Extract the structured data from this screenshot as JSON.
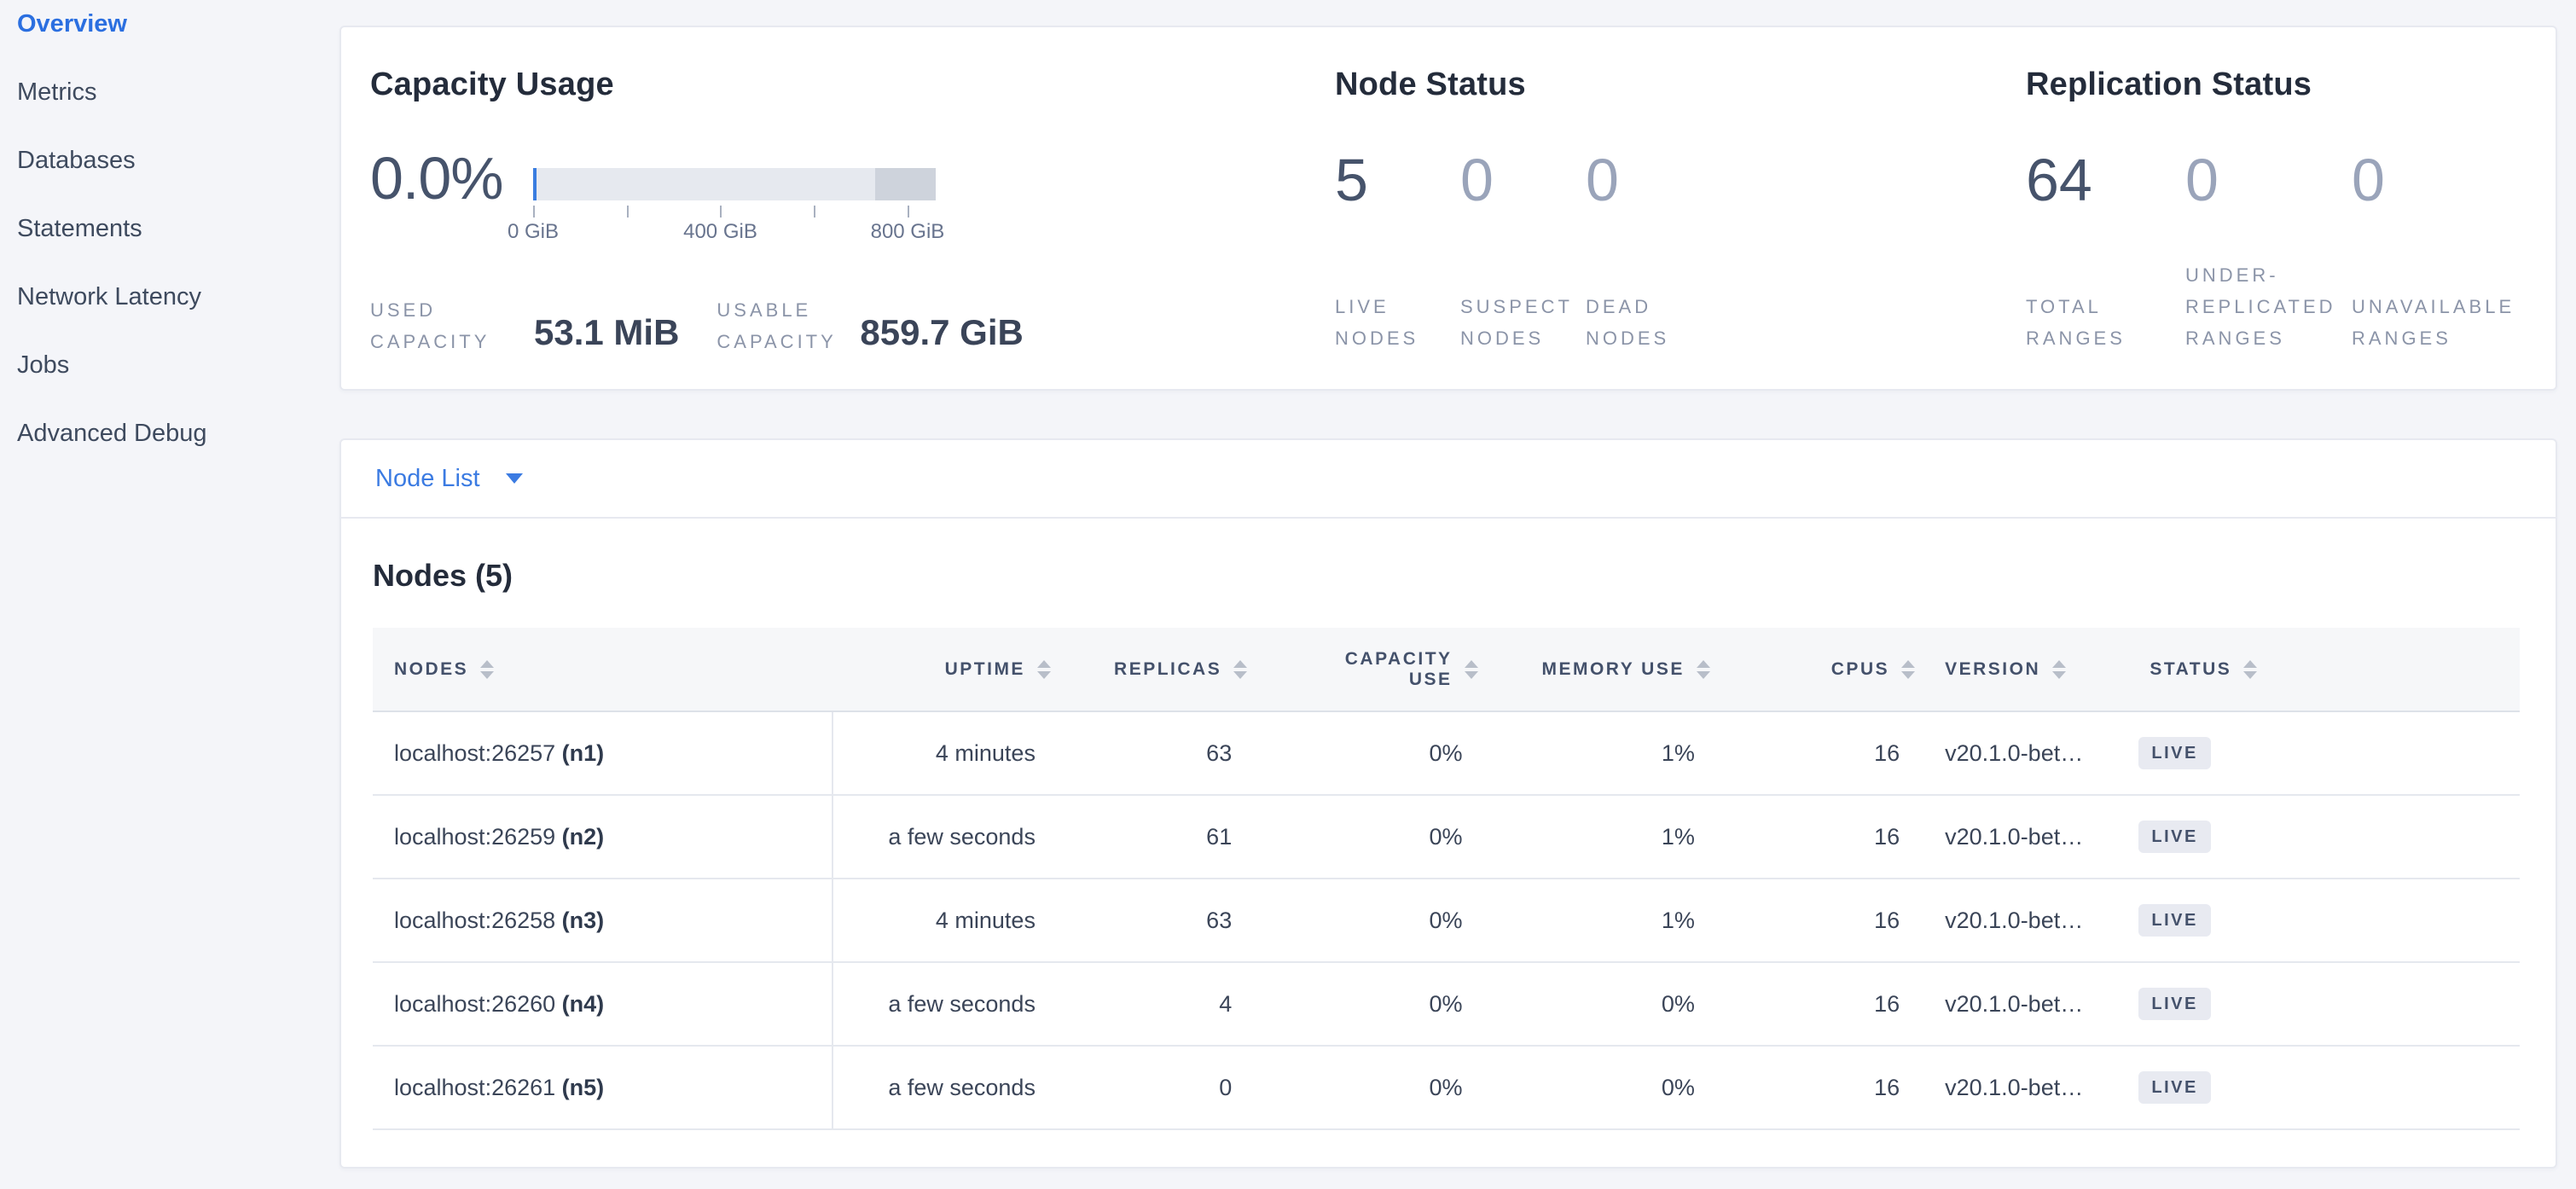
{
  "sidebar": {
    "items": [
      {
        "label": "Overview",
        "active": true
      },
      {
        "label": "Metrics",
        "active": false
      },
      {
        "label": "Databases",
        "active": false
      },
      {
        "label": "Statements",
        "active": false
      },
      {
        "label": "Network Latency",
        "active": false
      },
      {
        "label": "Jobs",
        "active": false
      },
      {
        "label": "Advanced Debug",
        "active": false
      }
    ]
  },
  "capacity": {
    "title": "Capacity Usage",
    "percent_used": "0.0%",
    "gauge": {
      "axis_ticks": [
        {
          "pos_pct": 0,
          "label": "0 GiB"
        },
        {
          "pos_pct": 23.3,
          "label": ""
        },
        {
          "pos_pct": 46.5,
          "label": "400 GiB"
        },
        {
          "pos_pct": 69.8,
          "label": ""
        },
        {
          "pos_pct": 93,
          "label": "800 GiB"
        }
      ],
      "dark_segment_start_pct": 85,
      "used_marker_pct": 0.8
    },
    "stats": [
      {
        "label": "USED CAPACITY",
        "value": "53.1 MiB"
      },
      {
        "label": "USABLE CAPACITY",
        "value": "859.7 GiB"
      }
    ]
  },
  "node_status": {
    "title": "Node Status",
    "stats": [
      {
        "value": "5",
        "label": "LIVE NODES",
        "emphasis": "strong"
      },
      {
        "value": "0",
        "label": "SUSPECT NODES",
        "emphasis": "muted"
      },
      {
        "value": "0",
        "label": "DEAD NODES",
        "emphasis": "muted"
      }
    ]
  },
  "replication_status": {
    "title": "Replication Status",
    "stats": [
      {
        "value": "64",
        "label": "TOTAL RANGES",
        "emphasis": "strong"
      },
      {
        "value": "0",
        "label": "UNDER-REPLICATED RANGES",
        "emphasis": "muted"
      },
      {
        "value": "0",
        "label": "UNAVAILABLE RANGES",
        "emphasis": "muted"
      }
    ]
  },
  "node_list": {
    "dropdown_label": "Node List"
  },
  "nodes_table": {
    "title": "Nodes (5)",
    "columns": [
      {
        "label": "NODES",
        "align": "left"
      },
      {
        "label": "UPTIME",
        "align": "right"
      },
      {
        "label": "REPLICAS",
        "align": "right"
      },
      {
        "label": "CAPACITY USE",
        "align": "right"
      },
      {
        "label": "MEMORY USE",
        "align": "right"
      },
      {
        "label": "CPUS",
        "align": "right"
      },
      {
        "label": "VERSION",
        "align": "left"
      },
      {
        "label": "STATUS",
        "align": "left"
      }
    ],
    "rows": [
      {
        "address": "localhost:26257",
        "node_id": "(n1)",
        "uptime": "4 minutes",
        "replicas": "63",
        "capacity_use": "0%",
        "memory_use": "1%",
        "cpus": "16",
        "version": "v20.1.0-bet…",
        "status": "LIVE"
      },
      {
        "address": "localhost:26259",
        "node_id": "(n2)",
        "uptime": "a few seconds",
        "replicas": "61",
        "capacity_use": "0%",
        "memory_use": "1%",
        "cpus": "16",
        "version": "v20.1.0-bet…",
        "status": "LIVE"
      },
      {
        "address": "localhost:26258",
        "node_id": "(n3)",
        "uptime": "4 minutes",
        "replicas": "63",
        "capacity_use": "0%",
        "memory_use": "1%",
        "cpus": "16",
        "version": "v20.1.0-bet…",
        "status": "LIVE"
      },
      {
        "address": "localhost:26260",
        "node_id": "(n4)",
        "uptime": "a few seconds",
        "replicas": "4",
        "capacity_use": "0%",
        "memory_use": "0%",
        "cpus": "16",
        "version": "v20.1.0-bet…",
        "status": "LIVE"
      },
      {
        "address": "localhost:26261",
        "node_id": "(n5)",
        "uptime": "a few seconds",
        "replicas": "0",
        "capacity_use": "0%",
        "memory_use": "0%",
        "cpus": "16",
        "version": "v20.1.0-bet…",
        "status": "LIVE"
      }
    ]
  },
  "colors": {
    "accent_blue": "#2b6fe0",
    "link_blue": "#3b7be2",
    "strong_number": "#46536b",
    "muted_number": "#9aa4ba",
    "badge_bg": "#e8eaf1",
    "gauge_fill": "#e6e9ef",
    "gauge_dark_segment": "#ced3dc",
    "gauge_used_marker": "#3a7de0",
    "card_bg": "#ffffff",
    "page_bg": "#f4f5f9"
  }
}
